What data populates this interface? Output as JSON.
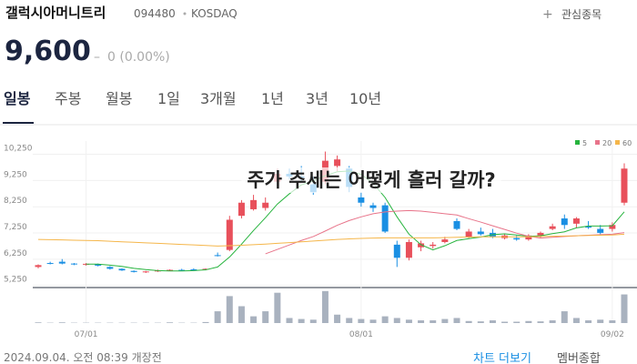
{
  "header": {
    "name": "갤럭시아머니트리",
    "code": "094480",
    "market": "KOSDAQ",
    "watch": "관심종목",
    "price": "9,600",
    "change": "0 (0.00%)"
  },
  "tabs": [
    "일봉",
    "주봉",
    "월봉",
    "1일",
    "3개월",
    "1년",
    "3년",
    "10년"
  ],
  "overlay": "주가 추세는 어떻게 흘러 갈까?",
  "footer": {
    "time": "2024.09.04. 오전 08:39 개장전",
    "more": "차트 더보기",
    "summary": "멤버종합"
  },
  "chart_data": {
    "type": "candlestick",
    "categories": [
      null,
      null,
      null,
      null,
      "07/01",
      null,
      null,
      null,
      null,
      null,
      null,
      null,
      null,
      null,
      null,
      null,
      null,
      null,
      null,
      null,
      null,
      null,
      null,
      null,
      null,
      null,
      null,
      "08/01",
      null,
      null,
      null,
      null,
      null,
      null,
      null,
      null,
      null,
      null,
      null,
      null,
      null,
      null,
      null,
      null,
      null,
      null,
      null,
      null,
      "09/02",
      null
    ],
    "open": [
      5850,
      6000,
      6050,
      5980,
      5950,
      5950,
      5850,
      5780,
      5700,
      5660,
      5680,
      5720,
      5740,
      5760,
      5750,
      6300,
      6500,
      7800,
      8050,
      8100,
      9100,
      9400,
      9300,
      9000,
      9100,
      9700,
      9600,
      8500,
      8200,
      8200,
      6700,
      6200,
      6600,
      6650,
      6800,
      7600,
      7000,
      7200,
      7150,
      6950,
      6950,
      6900,
      7050,
      7300,
      7700,
      7500,
      7400,
      7300,
      7300,
      8300
    ],
    "high": [
      5950,
      6050,
      6150,
      6000,
      6000,
      5980,
      5880,
      5800,
      5720,
      5700,
      5750,
      5760,
      5780,
      5800,
      5800,
      6400,
      7800,
      8400,
      8600,
      8500,
      9600,
      9600,
      9700,
      9300,
      10250,
      10100,
      9700,
      8700,
      8300,
      8300,
      6850,
      6900,
      6850,
      6800,
      7000,
      7700,
      7300,
      7350,
      7300,
      7100,
      7050,
      7100,
      7200,
      7500,
      7850,
      7750,
      7600,
      7450,
      7550,
      9800
    ],
    "low": [
      5800,
      5950,
      5950,
      5920,
      5900,
      5870,
      5750,
      5700,
      5640,
      5620,
      5660,
      5690,
      5700,
      5700,
      5720,
      6250,
      6450,
      7700,
      8000,
      8000,
      9000,
      9200,
      9100,
      8600,
      9000,
      9500,
      8700,
      8150,
      7950,
      7150,
      5850,
      6100,
      6450,
      6550,
      6750,
      7250,
      6950,
      7050,
      6950,
      6900,
      6850,
      6850,
      6950,
      7250,
      7300,
      7350,
      7300,
      7100,
      7200,
      8200
    ],
    "close": [
      5920,
      5980,
      5980,
      5950,
      5970,
      5900,
      5780,
      5720,
      5660,
      5680,
      5720,
      5740,
      5720,
      5730,
      5780,
      6280,
      7650,
      8300,
      8400,
      8300,
      9400,
      9300,
      9250,
      8700,
      9900,
      9950,
      8900,
      8300,
      8100,
      7200,
      6200,
      6800,
      6750,
      6700,
      6900,
      7300,
      7200,
      7100,
      7000,
      7050,
      6900,
      7050,
      7150,
      7400,
      7450,
      7700,
      7350,
      7150,
      7450,
      9600
    ],
    "up_color": "#e8505b",
    "down_color": "#1a8fe3",
    "ylim": [
      5100,
      10650
    ],
    "yticks": [
      {
        "value": 5250,
        "label": "5,250"
      },
      {
        "value": 6250,
        "label": "6,250"
      },
      {
        "value": 7250,
        "label": "7,250"
      },
      {
        "value": 8250,
        "label": "8,250"
      },
      {
        "value": 9250,
        "label": "9,250"
      },
      {
        "value": 10250,
        "label": "10,250"
      }
    ],
    "volume": {
      "color": "#a9b2bf",
      "ylim": [
        0,
        100
      ],
      "values": [
        2,
        1,
        2,
        1,
        1,
        1,
        1,
        1,
        1,
        1,
        1,
        2,
        1,
        1,
        3,
        35,
        80,
        50,
        20,
        35,
        90,
        15,
        12,
        10,
        95,
        25,
        15,
        12,
        10,
        20,
        15,
        10,
        8,
        8,
        12,
        15,
        6,
        5,
        8,
        4,
        4,
        6,
        5,
        8,
        35,
        15,
        8,
        10,
        8,
        85
      ]
    },
    "series": [
      {
        "name": "5",
        "color": "#27b43e",
        "values": [
          null,
          null,
          null,
          null,
          5960,
          5960,
          5920,
          5870,
          5800,
          5750,
          5710,
          5700,
          5700,
          5710,
          5740,
          5850,
          6230,
          6720,
          7240,
          7730,
          8250,
          8640,
          8980,
          9130,
          9330,
          9480,
          9510,
          9380,
          9040,
          8500,
          7760,
          7100,
          6700,
          6500,
          6660,
          6860,
          6930,
          6990,
          7080,
          7110,
          7070,
          7020,
          7040,
          7120,
          7190,
          7340,
          7410,
          7410,
          7420,
          7950
        ]
      },
      {
        "name": "20",
        "color": "#e8748a",
        "values": [
          null,
          null,
          null,
          null,
          null,
          null,
          null,
          null,
          null,
          null,
          null,
          null,
          null,
          null,
          null,
          null,
          null,
          null,
          null,
          6350,
          6520,
          6690,
          6860,
          7010,
          7220,
          7440,
          7620,
          7760,
          7880,
          7950,
          7980,
          8000,
          7980,
          7930,
          7880,
          7830,
          7690,
          7560,
          7420,
          7280,
          7140,
          7020,
          6950,
          6980,
          7010,
          7040,
          7060,
          7080,
          7100,
          7160
        ]
      },
      {
        "name": "60",
        "color": "#f5b64a",
        "values": [
          6900,
          6890,
          6880,
          6870,
          6860,
          6850,
          6830,
          6810,
          6790,
          6770,
          6750,
          6730,
          6710,
          6690,
          6670,
          6650,
          6660,
          6680,
          6700,
          6720,
          6750,
          6780,
          6810,
          6840,
          6870,
          6900,
          6920,
          6940,
          6950,
          6960,
          6960,
          6960,
          6960,
          6960,
          6970,
          6980,
          6990,
          7000,
          7000,
          7000,
          7000,
          7000,
          7010,
          7020,
          7030,
          7040,
          7050,
          7060,
          7070,
          7100
        ]
      }
    ]
  }
}
